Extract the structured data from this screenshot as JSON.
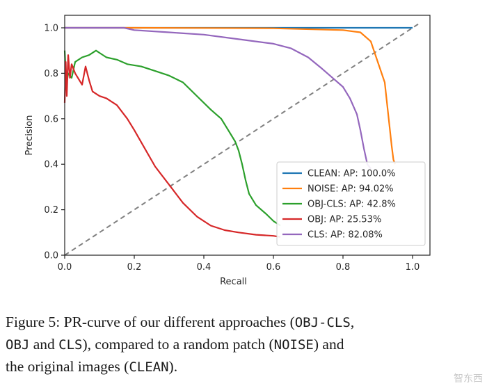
{
  "chart_data": {
    "type": "line",
    "xlabel": "Recall",
    "ylabel": "Precision",
    "xlim": [
      0.0,
      1.05
    ],
    "ylim": [
      0.0,
      1.0
    ],
    "x_ticks": [
      "0.0",
      "0.2",
      "0.4",
      "0.6",
      "0.8",
      "1.0"
    ],
    "y_ticks": [
      "0.0",
      "0.2",
      "0.4",
      "0.6",
      "0.8",
      "1.0"
    ],
    "x_tick_values": [
      0.0,
      0.2,
      0.4,
      0.6,
      0.8,
      1.0
    ],
    "y_tick_values": [
      0.0,
      0.2,
      0.4,
      0.6,
      0.8,
      1.0
    ],
    "grid": false,
    "legend_position": "lower-right",
    "diagonal": {
      "x": [
        0,
        1.02
      ],
      "y": [
        0,
        1.02
      ],
      "color": "#808080",
      "style": "dashed"
    },
    "series": [
      {
        "name": "CLEAN: AP: 100.0%",
        "color": "#1f77b4",
        "x": [
          0.0,
          0.2,
          0.5,
          0.8,
          1.0
        ],
        "y": [
          1.0,
          1.0,
          1.0,
          1.0,
          1.0
        ]
      },
      {
        "name": "NOISE: AP: 94.02%",
        "color": "#ff7f0e",
        "x": [
          0.0,
          0.2,
          0.4,
          0.6,
          0.8,
          0.85,
          0.88,
          0.9,
          0.92,
          0.93,
          0.94,
          0.945,
          0.95
        ],
        "y": [
          1.0,
          1.0,
          0.999,
          0.998,
          0.99,
          0.98,
          0.94,
          0.85,
          0.76,
          0.62,
          0.48,
          0.42,
          0.4
        ]
      },
      {
        "name": "OBJ-CLS: AP: 42.8%",
        "color": "#2ca02c",
        "x": [
          0.0,
          0.005,
          0.01,
          0.02,
          0.03,
          0.05,
          0.07,
          0.09,
          0.1,
          0.12,
          0.15,
          0.18,
          0.22,
          0.26,
          0.3,
          0.34,
          0.38,
          0.42,
          0.45,
          0.47,
          0.49,
          0.5,
          0.51,
          0.52,
          0.53,
          0.55,
          0.58,
          0.6,
          0.62
        ],
        "y": [
          0.9,
          0.75,
          0.8,
          0.78,
          0.85,
          0.87,
          0.88,
          0.9,
          0.89,
          0.87,
          0.86,
          0.84,
          0.83,
          0.81,
          0.79,
          0.76,
          0.7,
          0.64,
          0.6,
          0.55,
          0.5,
          0.46,
          0.4,
          0.33,
          0.27,
          0.22,
          0.18,
          0.15,
          0.13
        ]
      },
      {
        "name": "OBJ: AP: 25.53%",
        "color": "#d62728",
        "x": [
          0.0,
          0.003,
          0.006,
          0.01,
          0.015,
          0.02,
          0.03,
          0.05,
          0.06,
          0.07,
          0.08,
          0.1,
          0.12,
          0.15,
          0.18,
          0.2,
          0.23,
          0.26,
          0.3,
          0.34,
          0.38,
          0.42,
          0.46,
          0.5,
          0.55,
          0.6,
          0.62
        ],
        "y": [
          0.67,
          0.85,
          0.7,
          0.88,
          0.78,
          0.84,
          0.8,
          0.75,
          0.83,
          0.77,
          0.72,
          0.7,
          0.69,
          0.66,
          0.6,
          0.55,
          0.47,
          0.39,
          0.31,
          0.23,
          0.17,
          0.13,
          0.11,
          0.1,
          0.09,
          0.085,
          0.08
        ]
      },
      {
        "name": "CLS: AP: 82.08%",
        "color": "#9467bd",
        "x": [
          0.0,
          0.1,
          0.17,
          0.2,
          0.3,
          0.4,
          0.5,
          0.6,
          0.65,
          0.7,
          0.74,
          0.77,
          0.8,
          0.82,
          0.84,
          0.85,
          0.86,
          0.87,
          0.88
        ],
        "y": [
          1.0,
          1.0,
          1.0,
          0.99,
          0.98,
          0.97,
          0.95,
          0.93,
          0.91,
          0.87,
          0.82,
          0.78,
          0.74,
          0.69,
          0.62,
          0.55,
          0.47,
          0.4,
          0.38
        ]
      }
    ]
  },
  "caption": {
    "line1_a": "Figure 5: PR-curve of our different approaches (",
    "line1_code": "OBJ-CLS",
    "line1_b": ",",
    "line2_code1": "OBJ",
    "line2_a": " and ",
    "line2_code2": "CLS",
    "line2_b": "), compared to a random patch (",
    "line2_code3": "NOISE",
    "line2_c": ") and",
    "line3_a": "the original images (",
    "line3_code": "CLEAN",
    "line3_b": ")."
  },
  "watermark": "智东西"
}
